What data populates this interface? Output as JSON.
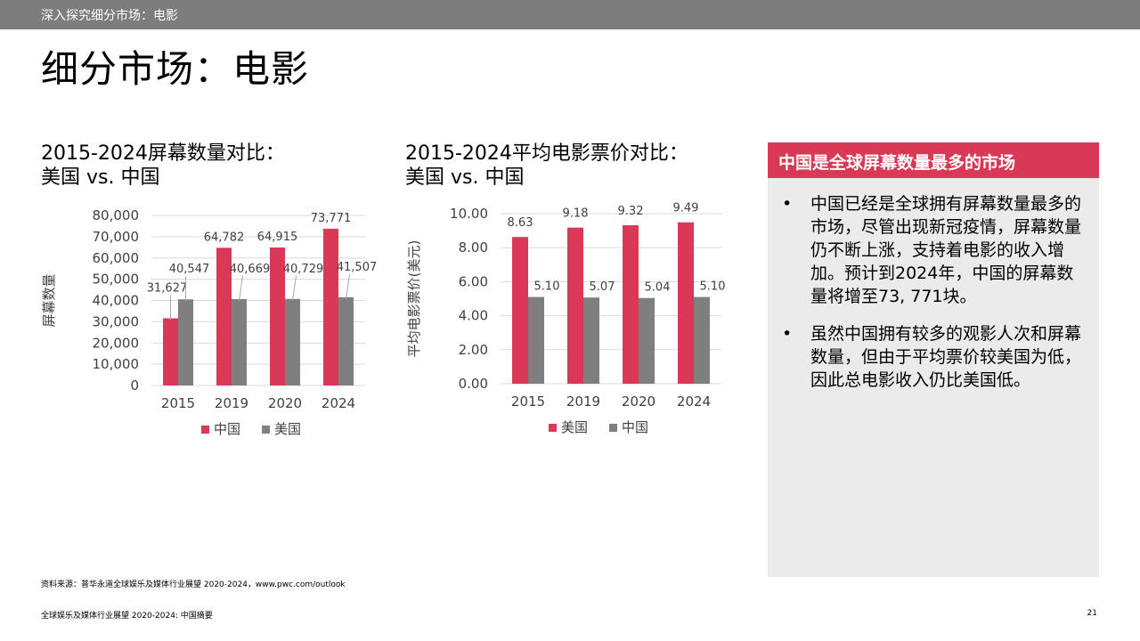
{
  "header": {
    "breadcrumb": "深入探究细分市场：电影",
    "title": "细分市场：电影"
  },
  "chart_data": [
    {
      "type": "bar",
      "title_line1": "2015-2024屏幕数量对比：",
      "title_line2": "美国 vs. 中国",
      "ylabel": "屏幕数量",
      "xlabel": "",
      "categories": [
        "2015",
        "2019",
        "2020",
        "2024"
      ],
      "ylim": [
        0,
        80000
      ],
      "yticks": [
        "0",
        "10,000",
        "20,000",
        "30,000",
        "40,000",
        "50,000",
        "60,000",
        "70,000",
        "80,000"
      ],
      "grid": true,
      "legend_position": "bottom",
      "series": [
        {
          "name": "中国",
          "color": "#d93954",
          "values": [
            31627,
            64782,
            64915,
            73771
          ],
          "labels": [
            "31,627",
            "64,782",
            "64,915",
            "73,771"
          ]
        },
        {
          "name": "美国",
          "color": "#7f7f7f",
          "values": [
            40547,
            40669,
            40729,
            41507
          ],
          "labels": [
            "40,547",
            "40,669",
            "40,729",
            "41,507"
          ]
        }
      ]
    },
    {
      "type": "bar",
      "title_line1": "2015-2024平均电影票价对比：",
      "title_line2": "美国 vs. 中国",
      "ylabel": "平均电影票价(美元)",
      "xlabel": "",
      "categories": [
        "2015",
        "2019",
        "2020",
        "2024"
      ],
      "ylim": [
        0,
        10
      ],
      "yticks": [
        "0.00",
        "2.00",
        "4.00",
        "6.00",
        "8.00",
        "10.00"
      ],
      "grid": true,
      "legend_position": "bottom",
      "series": [
        {
          "name": "美国",
          "color": "#d93954",
          "values": [
            8.63,
            9.18,
            9.32,
            9.49
          ],
          "labels": [
            "8.63",
            "9.18",
            "9.32",
            "9.49"
          ]
        },
        {
          "name": "中国",
          "color": "#7f7f7f",
          "values": [
            5.1,
            5.07,
            5.04,
            5.1
          ],
          "labels": [
            "5.10",
            "5.07",
            "5.04",
            "5.10"
          ]
        }
      ]
    }
  ],
  "panel": {
    "title": "中国是全球屏幕数量最多的市场",
    "bullet_symbol": "•",
    "bullets": [
      "中国已经是全球拥有屏幕数量最多的市场，尽管出现新冠疫情，屏幕数量仍不断上涨，支持着电影的收入增加。预计到2024年，中国的屏幕数量将增至73, 771块。",
      "虽然中国拥有较多的观影人次和屏幕数量，但由于平均票价较美国为低，因此总电影收入仍比美国低。"
    ]
  },
  "source": "资料来源：普华永道全球娱乐及媒体行业展望 2020-2024，www.pwc.com/outlook",
  "footer": "全球娱乐及媒体行业展望 2020-2024: 中国摘要",
  "page_number": "21",
  "colors": {
    "accent": "#d93954",
    "gray_bar": "#7f7f7f",
    "topbar": "#7d7d7d",
    "panel_bg": "#ebebeb"
  }
}
